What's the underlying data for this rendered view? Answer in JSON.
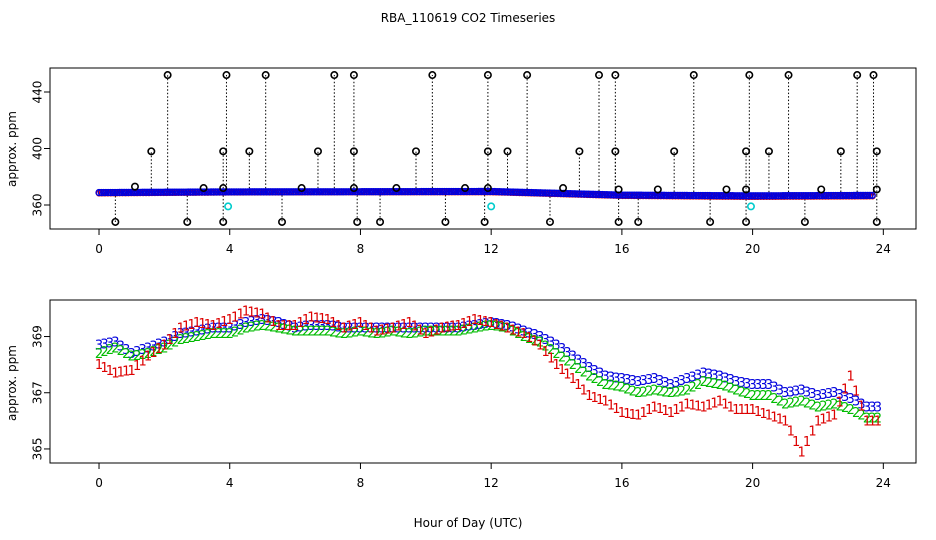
{
  "title": "RBA_110619  CO2 Timeseries",
  "xlabel": "Hour of Day (UTC)",
  "colors": {
    "black": "#000000",
    "red": "#dd0000",
    "green": "#00bb00",
    "blue": "#0000dd",
    "cyan": "#00cccc"
  },
  "chart_data": [
    {
      "type": "scatter",
      "panel": "top",
      "ylabel": "approx. ppm",
      "xlim": [
        -1.5,
        25
      ],
      "ylim": [
        343,
        457
      ],
      "xticks": [
        0,
        4,
        8,
        12,
        16,
        20,
        24
      ],
      "yticks": [
        360,
        400,
        440
      ],
      "xtick_labels": [
        "0",
        "4",
        "8",
        "12",
        "16",
        "20",
        "24"
      ],
      "ytick_labels": [
        "360",
        "400",
        "440"
      ],
      "dense_series": [
        {
          "color": "blue",
          "x": [
            0,
            4,
            8,
            12,
            16,
            20,
            23.7
          ],
          "y": [
            368.8,
            369.3,
            369.4,
            369.6,
            367.0,
            366.5,
            366.8
          ]
        },
        {
          "color": "red",
          "x": [
            0,
            4,
            8,
            12,
            16,
            20,
            23.7
          ],
          "y": [
            368.3,
            368.9,
            369.1,
            369.1,
            366.5,
            365.8,
            366.2
          ]
        }
      ],
      "high_points": {
        "color": "black",
        "x": [
          2.1,
          3.9,
          5.1,
          7.2,
          7.8,
          10.2,
          11.9,
          13.1,
          15.3,
          15.8,
          18.2,
          19.9,
          21.1,
          23.2,
          23.7
        ],
        "y": [
          452,
          452,
          452,
          452,
          452,
          452,
          452,
          452,
          452,
          452,
          452,
          452,
          452,
          452,
          452
        ]
      },
      "mid_points": {
        "color": "black",
        "x": [
          1.6,
          3.8,
          4.6,
          6.7,
          7.8,
          9.7,
          11.9,
          12.5,
          14.7,
          15.8,
          17.6,
          19.8,
          20.5,
          22.7,
          23.8
        ],
        "y": [
          398,
          398,
          398,
          398,
          398,
          398,
          398,
          398,
          398,
          398,
          398,
          398,
          398,
          398,
          398
        ]
      },
      "minor_points": {
        "color": "black",
        "x": [
          1.1,
          3.2,
          3.8,
          6.2,
          7.8,
          9.1,
          11.2,
          11.9,
          14.2,
          15.9,
          17.1,
          19.2,
          19.8,
          22.1,
          23.8
        ],
        "y": [
          373,
          372,
          372,
          372,
          372,
          372,
          372,
          372,
          372,
          371,
          371,
          371,
          371,
          371,
          371
        ]
      },
      "low_points": {
        "color": "black",
        "x": [
          0.5,
          2.7,
          3.8,
          5.6,
          7.9,
          8.6,
          10.6,
          11.8,
          13.8,
          15.9,
          16.5,
          18.7,
          19.8,
          21.6,
          23.8
        ],
        "y": [
          348,
          348,
          348,
          348,
          348,
          348,
          348,
          348,
          348,
          348,
          348,
          348,
          348,
          348,
          348
        ]
      },
      "cyan_points": {
        "color": "cyan",
        "x": [
          3.95,
          12.0,
          19.95
        ],
        "y": [
          359,
          359,
          359
        ]
      }
    },
    {
      "type": "scatter",
      "panel": "bottom",
      "ylabel": "approx. ppm",
      "xlim": [
        -1.5,
        25
      ],
      "ylim": [
        364.5,
        370.3
      ],
      "xticks": [
        0,
        4,
        8,
        12,
        16,
        20,
        24
      ],
      "yticks": [
        365,
        367,
        369
      ],
      "xtick_labels": [
        "0",
        "4",
        "8",
        "12",
        "16",
        "20",
        "24"
      ],
      "ytick_labels": [
        "365",
        "367",
        "369"
      ],
      "series": [
        {
          "symbol": "3",
          "color": "blue",
          "x": [
            0,
            0.5,
            1,
            1.5,
            2,
            2.5,
            3,
            3.5,
            4,
            4.5,
            5,
            5.5,
            6,
            6.5,
            7,
            7.5,
            8,
            8.5,
            9,
            9.5,
            10,
            10.5,
            11,
            11.5,
            12,
            12.5,
            13,
            13.5,
            14,
            14.5,
            15,
            15.5,
            16,
            16.5,
            17,
            17.5,
            18,
            18.5,
            19,
            19.5,
            20,
            20.5,
            21,
            21.5,
            22,
            22.5,
            23,
            23.5
          ],
          "y": [
            368.7,
            368.8,
            368.4,
            368.6,
            368.8,
            369.1,
            369.2,
            369.3,
            369.3,
            369.5,
            369.6,
            369.5,
            369.3,
            369.4,
            369.4,
            369.3,
            369.3,
            369.3,
            369.3,
            369.3,
            369.3,
            369.3,
            369.3,
            369.4,
            369.5,
            369.4,
            369.2,
            369.0,
            368.7,
            368.3,
            367.9,
            367.6,
            367.5,
            367.4,
            367.5,
            367.3,
            367.5,
            367.7,
            367.6,
            367.4,
            367.3,
            367.3,
            367.0,
            367.1,
            366.9,
            367.0,
            366.8,
            366.5
          ]
        },
        {
          "symbol": "2",
          "color": "green",
          "x": [
            0,
            0.5,
            1,
            1.5,
            2,
            2.5,
            3,
            3.5,
            4,
            4.5,
            5,
            5.5,
            6,
            6.5,
            7,
            7.5,
            8,
            8.5,
            9,
            9.5,
            10,
            10.5,
            11,
            11.5,
            12,
            12.5,
            13,
            13.5,
            14,
            14.5,
            15,
            15.5,
            16,
            16.5,
            17,
            17.5,
            18,
            18.5,
            19,
            19.5,
            20,
            20.5,
            21,
            21.5,
            22,
            22.5,
            23,
            23.5
          ],
          "y": [
            368.4,
            368.6,
            368.3,
            368.4,
            368.6,
            368.9,
            369.0,
            369.1,
            369.1,
            369.3,
            369.4,
            369.3,
            369.2,
            369.2,
            369.2,
            369.1,
            369.2,
            369.1,
            369.2,
            369.1,
            369.2,
            369.2,
            369.2,
            369.3,
            369.4,
            369.3,
            369.0,
            368.8,
            368.4,
            368.0,
            367.6,
            367.3,
            367.2,
            367.0,
            367.1,
            367.0,
            367.1,
            367.4,
            367.3,
            367.1,
            366.9,
            366.9,
            366.6,
            366.7,
            366.5,
            366.6,
            366.4,
            366.1
          ]
        },
        {
          "symbol": "1",
          "color": "red",
          "x": [
            0,
            0.5,
            1,
            1.5,
            2,
            2.5,
            3,
            3.5,
            4,
            4.5,
            5,
            5.5,
            6,
            6.5,
            7,
            7.5,
            8,
            8.5,
            9,
            9.5,
            10,
            10.5,
            11,
            11.5,
            12,
            12.5,
            13,
            13.5,
            14,
            14.5,
            15,
            15.5,
            16,
            16.5,
            17,
            17.5,
            18,
            18.5,
            19,
            19.5,
            20,
            20.5,
            21,
            21.5,
            22,
            22.5,
            23,
            23.5
          ],
          "y": [
            368.0,
            367.7,
            367.8,
            368.3,
            368.7,
            369.3,
            369.5,
            369.4,
            369.6,
            369.9,
            369.8,
            369.4,
            369.4,
            369.7,
            369.6,
            369.3,
            369.5,
            369.2,
            369.3,
            369.5,
            369.1,
            369.3,
            369.4,
            369.6,
            369.5,
            369.3,
            369.1,
            368.7,
            368.0,
            367.5,
            366.9,
            366.7,
            366.3,
            366.2,
            366.5,
            366.3,
            366.6,
            366.5,
            366.7,
            366.4,
            366.4,
            366.2,
            366.0,
            364.9,
            366.0,
            366.2,
            367.6,
            366.0
          ]
        }
      ]
    }
  ]
}
